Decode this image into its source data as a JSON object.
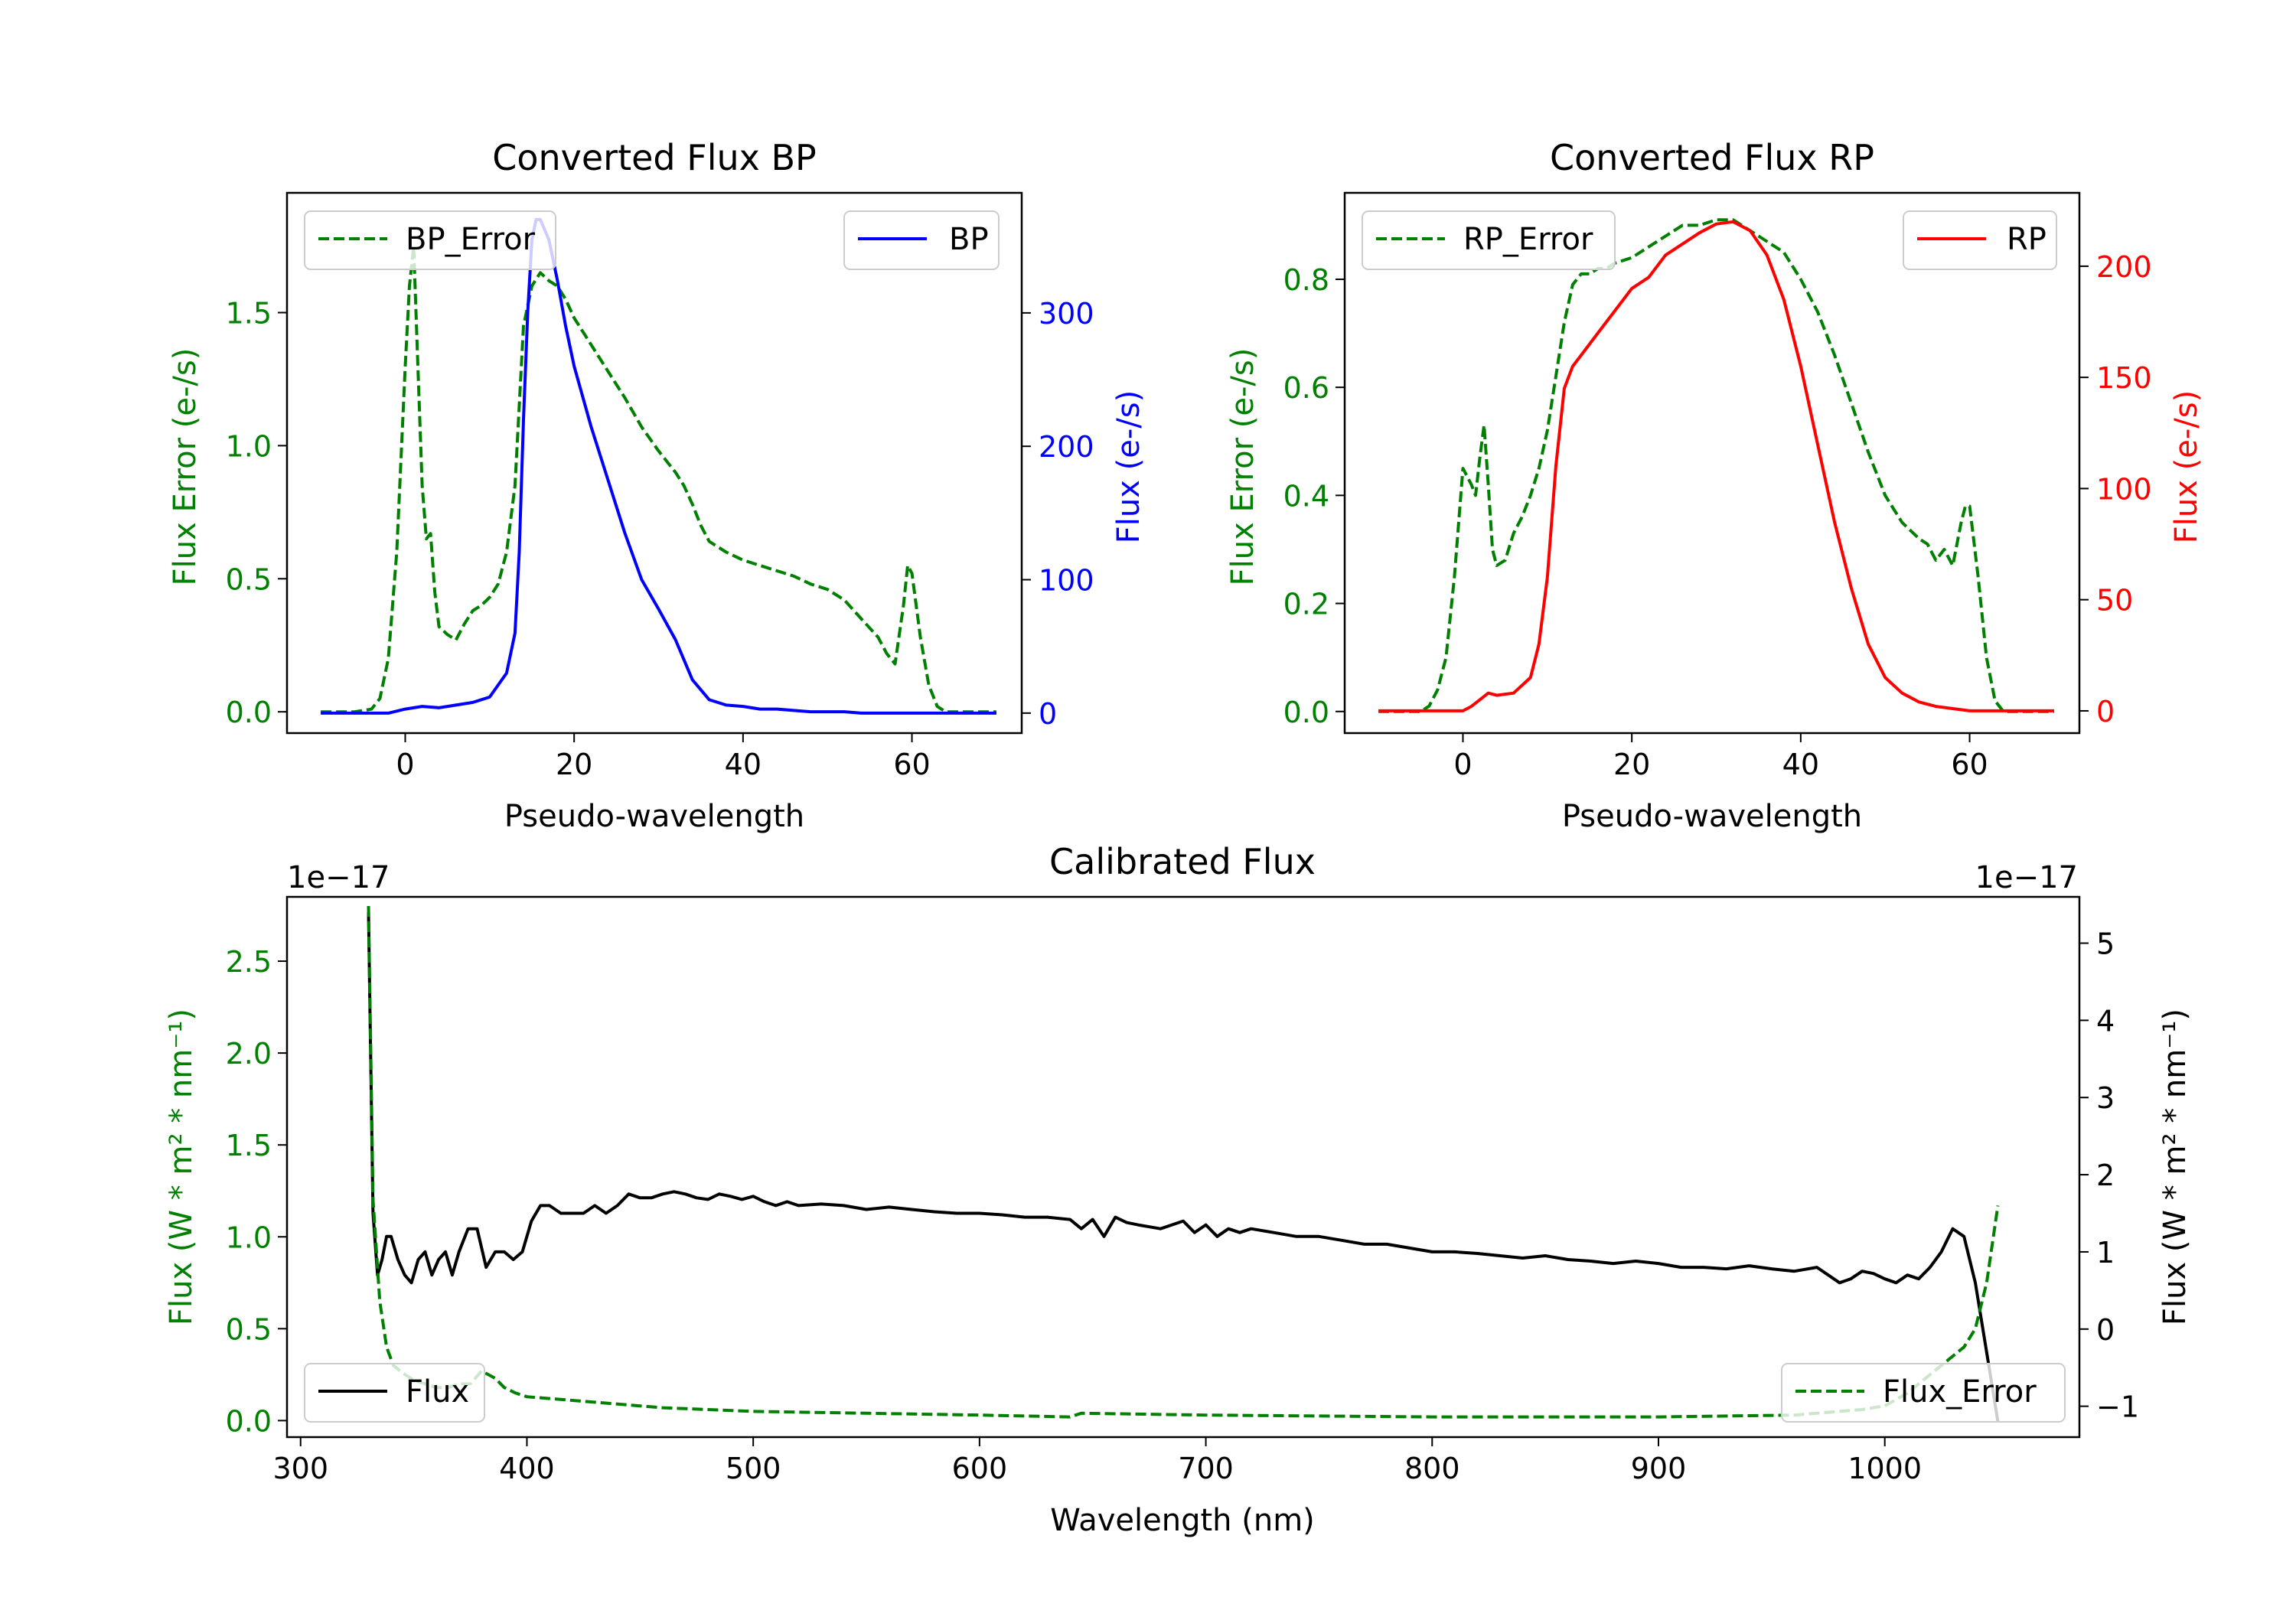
{
  "colors": {
    "green": "#008000",
    "blue": "#0000ff",
    "red": "#ff0000",
    "black": "#000000",
    "axis": "#000000"
  },
  "chart_data": [
    {
      "id": "bp",
      "type": "line",
      "title": "Converted Flux BP",
      "xlabel": "Pseudo-wavelength",
      "ylabel_left": "Flux Error (e-/s)",
      "ylabel_right": "Flux (e-/s)",
      "xlim": [
        -14,
        73
      ],
      "ylim_left": [
        -0.08,
        1.95
      ],
      "ylim_right": [
        -15,
        390
      ],
      "xticks": [
        0,
        20,
        40,
        60
      ],
      "yticks_left": [
        0.0,
        0.5,
        1.0,
        1.5
      ],
      "yticks_right": [
        0,
        100,
        200,
        300
      ],
      "legend_left": {
        "label": "BP_Error",
        "position": "upper-left"
      },
      "legend_right": {
        "label": "BP",
        "position": "upper-right"
      },
      "series": [
        {
          "name": "BP_Error",
          "axis": "left",
          "style": "dashed",
          "color": "#008000",
          "x": [
            -10,
            -6,
            -4,
            -3,
            -2,
            -1,
            0,
            0.5,
            1,
            1.5,
            2,
            2.5,
            3,
            3.5,
            4,
            5,
            6,
            7,
            8,
            9,
            10,
            11,
            12,
            13,
            14,
            15,
            16,
            17,
            18,
            19,
            20,
            22,
            24,
            26,
            28,
            30,
            32,
            33,
            34,
            35,
            36,
            38,
            40,
            42,
            44,
            46,
            48,
            50,
            52,
            54,
            56,
            57,
            58,
            59,
            59.5,
            60,
            61,
            62,
            63,
            64,
            66,
            70
          ],
          "y": [
            0.0,
            0.0,
            0.01,
            0.05,
            0.2,
            0.6,
            1.3,
            1.6,
            1.75,
            1.3,
            0.85,
            0.65,
            0.67,
            0.45,
            0.32,
            0.29,
            0.27,
            0.33,
            0.38,
            0.4,
            0.43,
            0.48,
            0.6,
            0.85,
            1.45,
            1.6,
            1.65,
            1.62,
            1.6,
            1.55,
            1.48,
            1.38,
            1.28,
            1.18,
            1.07,
            0.98,
            0.9,
            0.85,
            0.78,
            0.7,
            0.64,
            0.6,
            0.57,
            0.55,
            0.53,
            0.51,
            0.48,
            0.46,
            0.42,
            0.35,
            0.28,
            0.22,
            0.18,
            0.4,
            0.55,
            0.52,
            0.28,
            0.1,
            0.02,
            0.0,
            0.0,
            0.0
          ]
        },
        {
          "name": "BP",
          "axis": "right",
          "style": "solid",
          "color": "#0000ff",
          "x": [
            -10,
            -4,
            -2,
            0,
            2,
            4,
            6,
            8,
            10,
            12,
            13,
            13.5,
            14,
            14.5,
            15,
            15.5,
            16,
            17,
            18,
            19,
            20,
            22,
            24,
            26,
            28,
            30,
            32,
            34,
            36,
            38,
            40,
            42,
            44,
            46,
            48,
            50,
            52,
            54,
            56,
            58,
            60,
            62,
            64,
            66,
            70
          ],
          "y": [
            0,
            0,
            0,
            3,
            5,
            4,
            6,
            8,
            12,
            30,
            60,
            120,
            220,
            300,
            355,
            370,
            370,
            355,
            325,
            290,
            260,
            215,
            175,
            135,
            100,
            78,
            55,
            25,
            10,
            6,
            5,
            3,
            3,
            2,
            1,
            1,
            1,
            0,
            0,
            0,
            0,
            0,
            0,
            0,
            0
          ]
        }
      ]
    },
    {
      "id": "rp",
      "type": "line",
      "title": "Converted Flux RP",
      "xlabel": "Pseudo-wavelength",
      "ylabel_left": "Flux Error (e-/s)",
      "ylabel_right": "Flux (e-/s)",
      "xlim": [
        -14,
        73
      ],
      "ylim_left": [
        -0.04,
        0.96
      ],
      "ylim_right": [
        -10,
        233
      ],
      "xticks": [
        0,
        20,
        40,
        60
      ],
      "yticks_left": [
        0.0,
        0.2,
        0.4,
        0.6,
        0.8
      ],
      "yticks_right": [
        0,
        50,
        100,
        150,
        200
      ],
      "legend_left": {
        "label": "RP_Error",
        "position": "upper-left"
      },
      "legend_right": {
        "label": "RP",
        "position": "upper-right"
      },
      "series": [
        {
          "name": "RP_Error",
          "axis": "left",
          "style": "dashed",
          "color": "#008000",
          "x": [
            -10,
            -5,
            -4,
            -3,
            -2,
            -1,
            0,
            1,
            1.5,
            2,
            2.5,
            3,
            3.5,
            4,
            5,
            6,
            7,
            8,
            9,
            10,
            11,
            12,
            13,
            14,
            15,
            16,
            17,
            18,
            20,
            22,
            24,
            26,
            28,
            30,
            32,
            34,
            36,
            38,
            40,
            42,
            44,
            46,
            48,
            50,
            52,
            54,
            55,
            56,
            57,
            58,
            59,
            59.5,
            60,
            61,
            62,
            63,
            64,
            66,
            70
          ],
          "y": [
            0.0,
            0.0,
            0.01,
            0.04,
            0.1,
            0.25,
            0.45,
            0.42,
            0.4,
            0.47,
            0.53,
            0.42,
            0.3,
            0.27,
            0.28,
            0.33,
            0.36,
            0.4,
            0.45,
            0.52,
            0.62,
            0.72,
            0.79,
            0.81,
            0.81,
            0.82,
            0.82,
            0.83,
            0.84,
            0.86,
            0.88,
            0.9,
            0.9,
            0.91,
            0.91,
            0.89,
            0.87,
            0.85,
            0.8,
            0.74,
            0.66,
            0.57,
            0.48,
            0.4,
            0.35,
            0.32,
            0.31,
            0.28,
            0.3,
            0.27,
            0.35,
            0.38,
            0.38,
            0.25,
            0.1,
            0.02,
            0.0,
            0.0,
            0.0
          ]
        },
        {
          "name": "RP",
          "axis": "right",
          "style": "solid",
          "color": "#ff0000",
          "x": [
            -10,
            -4,
            -2,
            0,
            1,
            2,
            3,
            4,
            6,
            8,
            9,
            10,
            11,
            12,
            13,
            14,
            16,
            18,
            20,
            22,
            24,
            26,
            28,
            30,
            32,
            34,
            36,
            38,
            40,
            42,
            44,
            46,
            48,
            50,
            52,
            54,
            56,
            58,
            60,
            62,
            64,
            66,
            70
          ],
          "y": [
            0,
            0,
            0,
            0,
            2,
            5,
            8,
            7,
            8,
            15,
            30,
            60,
            110,
            145,
            155,
            160,
            170,
            180,
            190,
            195,
            205,
            210,
            215,
            219,
            220,
            216,
            205,
            185,
            155,
            120,
            85,
            55,
            30,
            15,
            8,
            4,
            2,
            1,
            0,
            0,
            0,
            0,
            0
          ]
        }
      ]
    },
    {
      "id": "cal",
      "type": "line",
      "title": "Calibrated Flux",
      "xlabel": "Wavelength (nm)",
      "ylabel_left": "Flux (W * m² * nm⁻¹)",
      "ylabel_right": "Flux (W * m² * nm⁻¹)",
      "offset_left": "1e−17",
      "offset_right": "1e−17",
      "xlim": [
        294,
        1086
      ],
      "ylim_left": [
        -0.09,
        2.85
      ],
      "ylim_right": [
        -1.4,
        5.6
      ],
      "xticks": [
        300,
        400,
        500,
        600,
        700,
        800,
        900,
        1000
      ],
      "yticks_left": [
        0.0,
        0.5,
        1.0,
        1.5,
        2.0,
        2.5
      ],
      "yticks_right": [
        -1,
        0,
        1,
        2,
        3,
        4,
        5
      ],
      "legend_left": {
        "label": "Flux",
        "position": "lower-left"
      },
      "legend_right": {
        "label": "Flux_Error",
        "position": "lower-right"
      },
      "series": [
        {
          "name": "Flux",
          "axis": "right",
          "style": "solid",
          "color": "#000000",
          "x": [
            330,
            332,
            334,
            336,
            338,
            340,
            343,
            346,
            349,
            352,
            355,
            358,
            361,
            364,
            367,
            370,
            374,
            378,
            382,
            386,
            390,
            394,
            398,
            402,
            406,
            410,
            415,
            420,
            425,
            430,
            435,
            440,
            445,
            450,
            455,
            460,
            465,
            470,
            475,
            480,
            485,
            490,
            495,
            500,
            505,
            510,
            515,
            520,
            530,
            540,
            550,
            560,
            570,
            580,
            590,
            600,
            610,
            620,
            630,
            640,
            645,
            650,
            655,
            660,
            665,
            670,
            680,
            690,
            695,
            700,
            705,
            710,
            715,
            720,
            730,
            740,
            750,
            760,
            770,
            780,
            790,
            800,
            810,
            820,
            830,
            840,
            850,
            860,
            870,
            880,
            890,
            900,
            910,
            920,
            930,
            940,
            950,
            960,
            970,
            975,
            980,
            985,
            990,
            995,
            1000,
            1005,
            1010,
            1015,
            1020,
            1025,
            1030,
            1035,
            1040,
            1045,
            1050
          ],
          "y": [
            5.4,
            1.5,
            0.7,
            0.9,
            1.2,
            1.2,
            0.9,
            0.7,
            0.6,
            0.9,
            1.0,
            0.7,
            0.9,
            1.0,
            0.7,
            1.0,
            1.3,
            1.3,
            0.8,
            1.0,
            1.0,
            0.9,
            1.0,
            1.4,
            1.6,
            1.6,
            1.5,
            1.5,
            1.5,
            1.6,
            1.5,
            1.6,
            1.75,
            1.7,
            1.7,
            1.75,
            1.78,
            1.75,
            1.7,
            1.68,
            1.75,
            1.72,
            1.68,
            1.72,
            1.65,
            1.6,
            1.65,
            1.6,
            1.62,
            1.6,
            1.55,
            1.58,
            1.55,
            1.52,
            1.5,
            1.5,
            1.48,
            1.45,
            1.45,
            1.42,
            1.3,
            1.42,
            1.2,
            1.45,
            1.38,
            1.35,
            1.3,
            1.4,
            1.25,
            1.35,
            1.2,
            1.3,
            1.25,
            1.3,
            1.25,
            1.2,
            1.2,
            1.15,
            1.1,
            1.1,
            1.05,
            1.0,
            1.0,
            0.98,
            0.95,
            0.92,
            0.95,
            0.9,
            0.88,
            0.85,
            0.88,
            0.85,
            0.8,
            0.8,
            0.78,
            0.82,
            0.78,
            0.75,
            0.8,
            0.7,
            0.6,
            0.65,
            0.75,
            0.72,
            0.65,
            0.6,
            0.7,
            0.65,
            0.8,
            1.0,
            1.3,
            1.2,
            0.6,
            -0.3,
            -1.2
          ]
        },
        {
          "name": "Flux_Error",
          "axis": "left",
          "style": "dashed",
          "color": "#008000",
          "x": [
            330,
            332,
            335,
            338,
            341,
            345,
            350,
            355,
            360,
            365,
            370,
            375,
            380,
            383,
            386,
            390,
            395,
            400,
            410,
            420,
            430,
            440,
            450,
            460,
            480,
            500,
            550,
            600,
            640,
            645,
            700,
            800,
            900,
            960,
            990,
            1000,
            1010,
            1020,
            1030,
            1035,
            1040,
            1045,
            1050
          ],
          "y": [
            2.8,
            1.2,
            0.65,
            0.4,
            0.3,
            0.26,
            0.22,
            0.2,
            0.18,
            0.18,
            0.2,
            0.2,
            0.27,
            0.25,
            0.23,
            0.18,
            0.15,
            0.13,
            0.12,
            0.11,
            0.1,
            0.09,
            0.08,
            0.07,
            0.06,
            0.05,
            0.04,
            0.03,
            0.02,
            0.04,
            0.03,
            0.02,
            0.02,
            0.03,
            0.06,
            0.08,
            0.15,
            0.25,
            0.35,
            0.4,
            0.5,
            0.75,
            1.17
          ]
        }
      ]
    }
  ]
}
